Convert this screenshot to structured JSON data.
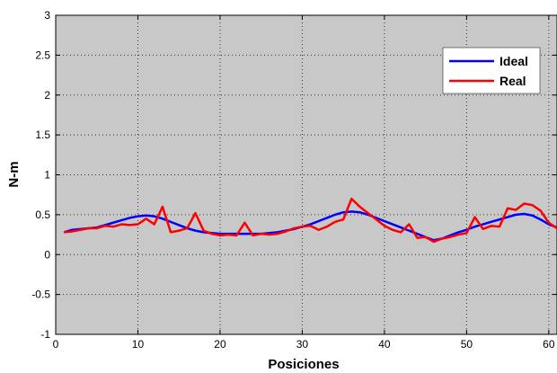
{
  "chart_data": {
    "type": "line",
    "xlabel": "Posiciones",
    "ylabel": "N-m",
    "xlim": [
      0,
      61
    ],
    "ylim": [
      -1,
      3
    ],
    "xticks": [
      0,
      10,
      20,
      30,
      40,
      50,
      60
    ],
    "yticks": [
      -1,
      -0.5,
      0,
      0.5,
      1,
      1.5,
      2,
      2.5,
      3
    ],
    "grid": true,
    "legend_position": "top-right",
    "plot_background": "#c8c8c8",
    "series": [
      {
        "name": "Ideal",
        "color": "#0000ff",
        "x": [
          1,
          2,
          3,
          4,
          5,
          6,
          7,
          8,
          9,
          10,
          11,
          12,
          13,
          14,
          15,
          16,
          17,
          18,
          19,
          20,
          21,
          22,
          23,
          24,
          25,
          26,
          27,
          28,
          29,
          30,
          31,
          32,
          33,
          34,
          35,
          36,
          37,
          38,
          39,
          40,
          41,
          42,
          43,
          44,
          45,
          46,
          47,
          48,
          49,
          50,
          51,
          52,
          53,
          54,
          55,
          56,
          57,
          58,
          59,
          60,
          61
        ],
        "y": [
          0.28,
          0.31,
          0.32,
          0.33,
          0.34,
          0.37,
          0.4,
          0.43,
          0.46,
          0.48,
          0.49,
          0.48,
          0.45,
          0.41,
          0.37,
          0.33,
          0.3,
          0.28,
          0.27,
          0.26,
          0.26,
          0.26,
          0.26,
          0.26,
          0.26,
          0.27,
          0.28,
          0.3,
          0.32,
          0.35,
          0.38,
          0.42,
          0.46,
          0.5,
          0.53,
          0.54,
          0.53,
          0.5,
          0.46,
          0.42,
          0.38,
          0.34,
          0.3,
          0.26,
          0.22,
          0.18,
          0.2,
          0.24,
          0.28,
          0.31,
          0.35,
          0.38,
          0.41,
          0.44,
          0.47,
          0.5,
          0.51,
          0.49,
          0.44,
          0.38,
          0.34
        ]
      },
      {
        "name": "Real",
        "color": "#ff0000",
        "x": [
          1,
          2,
          3,
          4,
          5,
          6,
          7,
          8,
          9,
          10,
          11,
          12,
          13,
          14,
          15,
          16,
          17,
          18,
          19,
          20,
          21,
          22,
          23,
          24,
          25,
          26,
          27,
          28,
          29,
          30,
          31,
          32,
          33,
          34,
          35,
          36,
          37,
          38,
          39,
          40,
          41,
          42,
          43,
          44,
          45,
          46,
          47,
          48,
          49,
          50,
          51,
          52,
          53,
          54,
          55,
          56,
          57,
          58,
          59,
          60,
          61
        ],
        "y": [
          0.28,
          0.29,
          0.31,
          0.33,
          0.33,
          0.36,
          0.35,
          0.38,
          0.37,
          0.38,
          0.45,
          0.38,
          0.6,
          0.28,
          0.3,
          0.33,
          0.52,
          0.3,
          0.26,
          0.24,
          0.25,
          0.24,
          0.4,
          0.24,
          0.26,
          0.25,
          0.26,
          0.29,
          0.33,
          0.35,
          0.36,
          0.31,
          0.35,
          0.41,
          0.44,
          0.7,
          0.6,
          0.52,
          0.44,
          0.36,
          0.31,
          0.28,
          0.38,
          0.21,
          0.22,
          0.16,
          0.2,
          0.22,
          0.25,
          0.27,
          0.47,
          0.32,
          0.36,
          0.35,
          0.58,
          0.56,
          0.64,
          0.62,
          0.55,
          0.4,
          0.33
        ]
      }
    ]
  }
}
